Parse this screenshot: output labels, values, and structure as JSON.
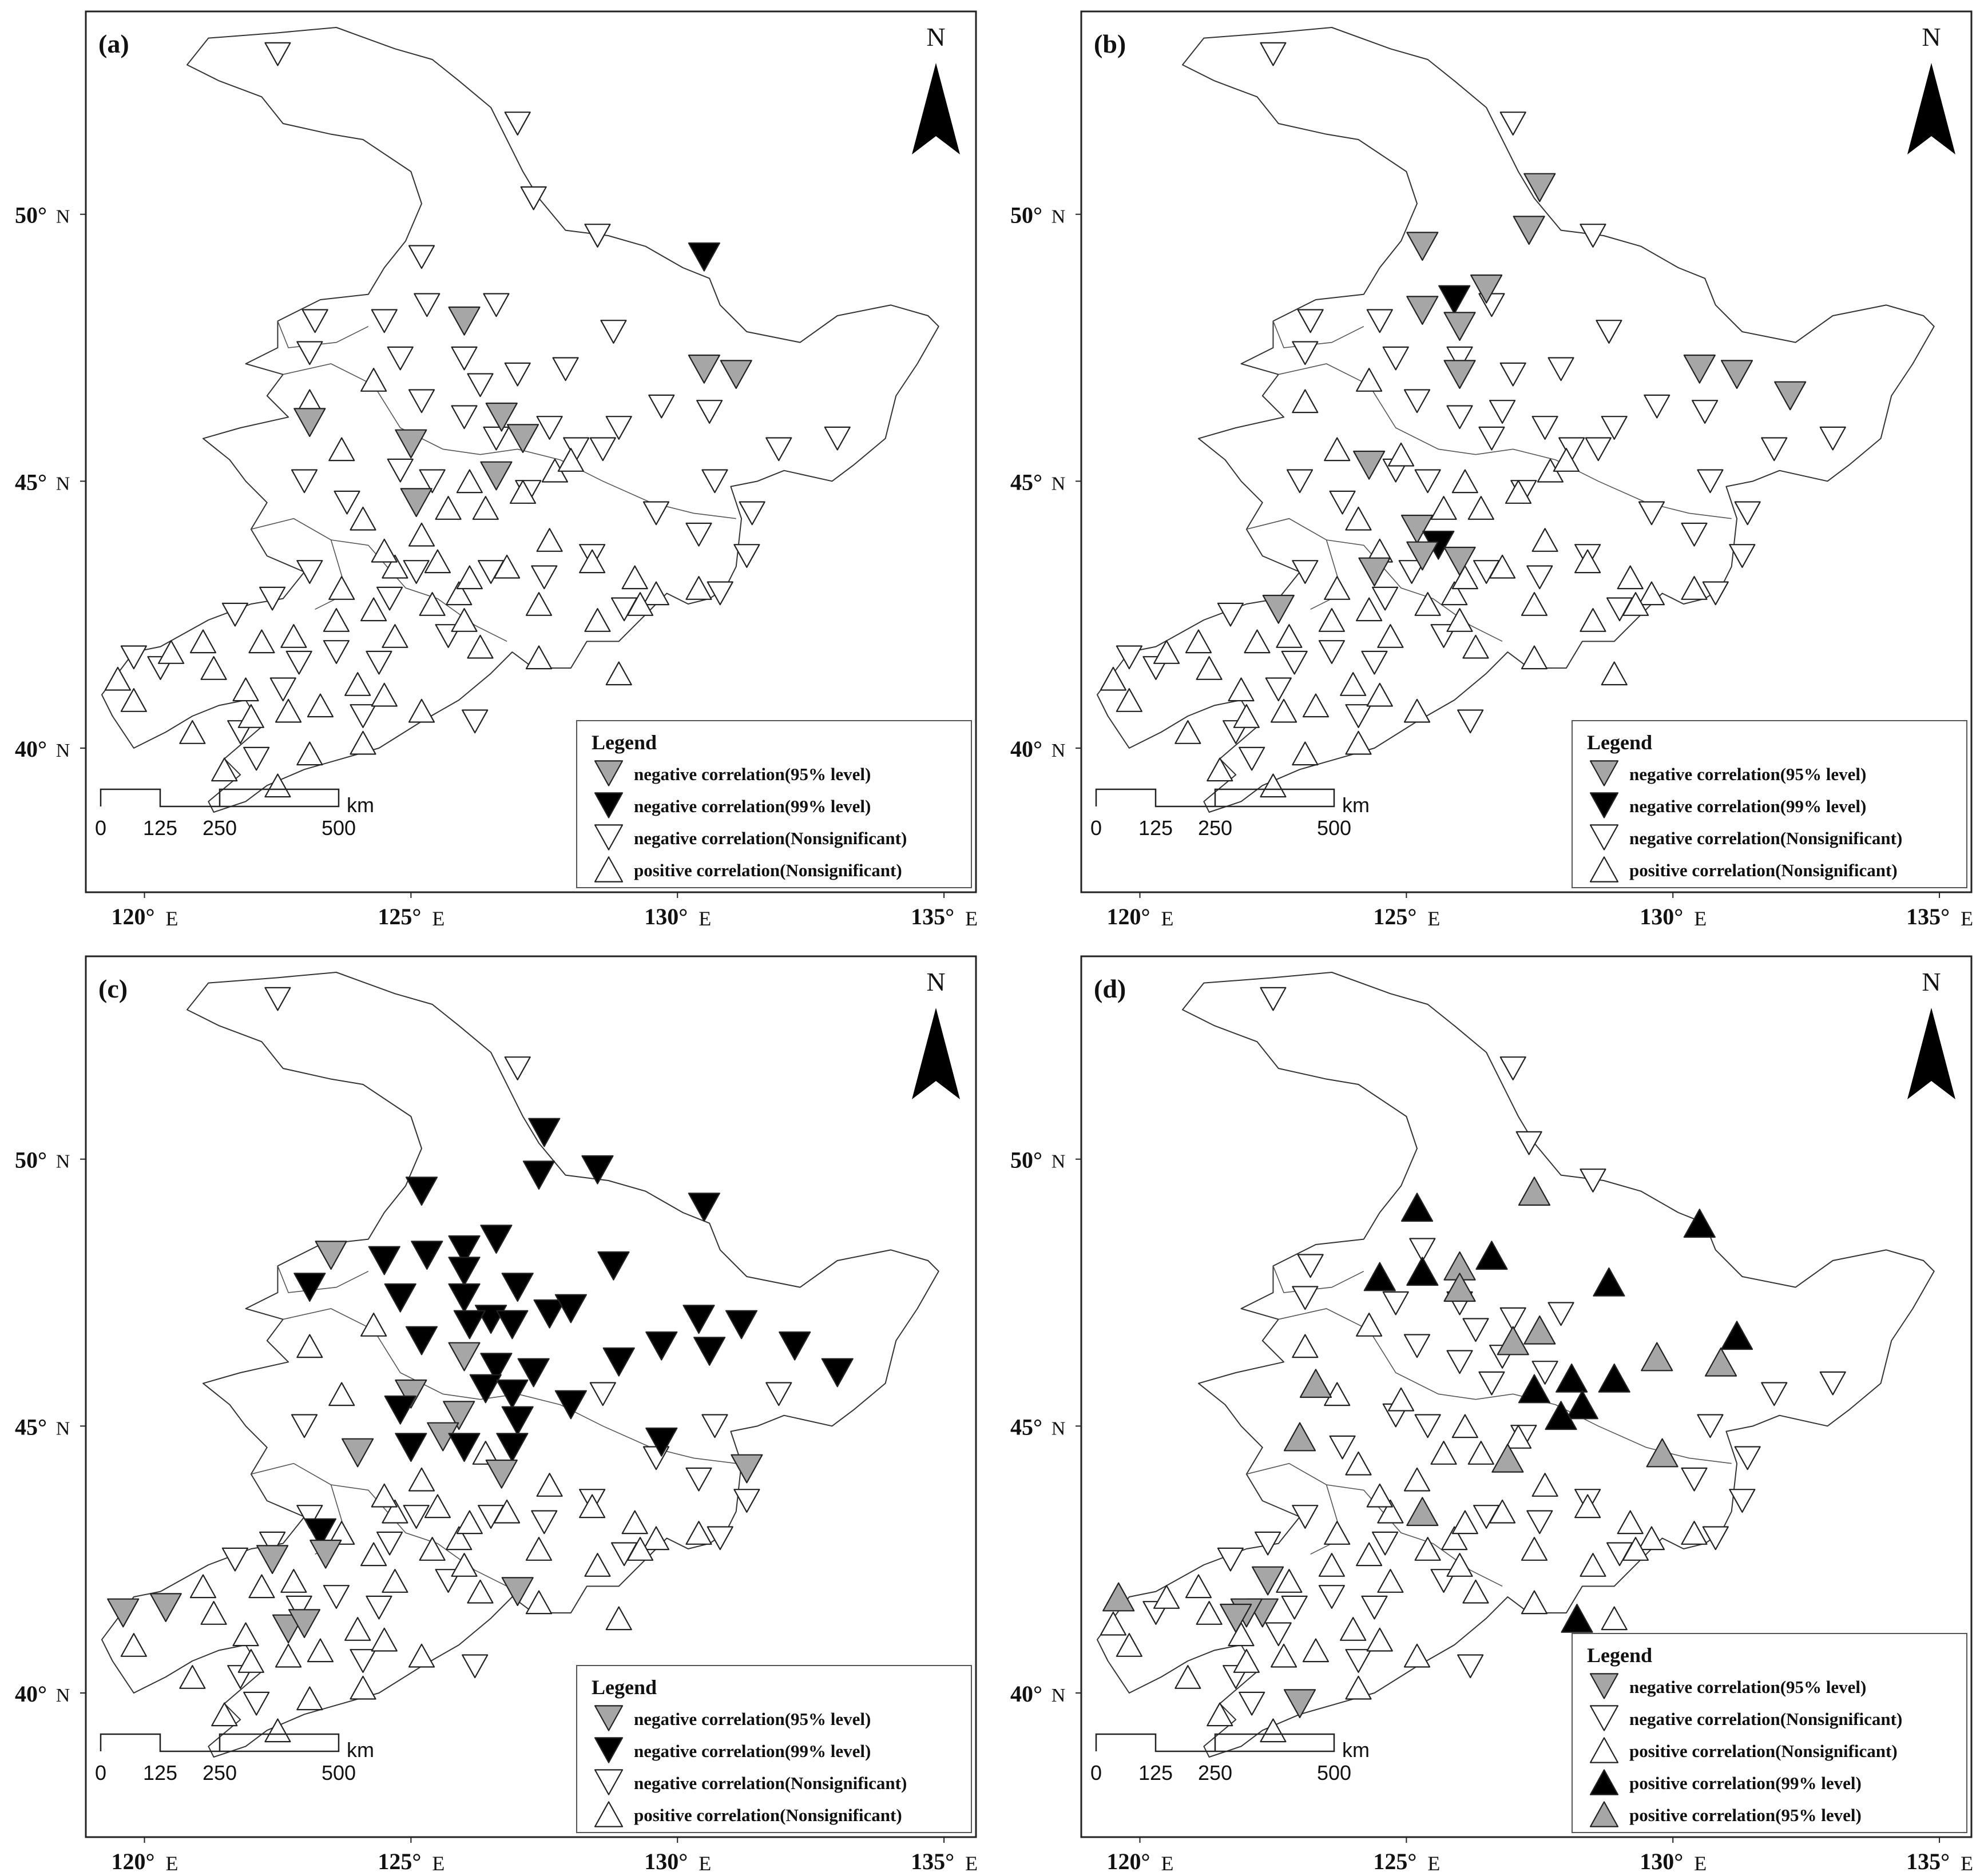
{
  "figure": {
    "north_label": "N",
    "scale_unit": "km",
    "scale_ticks": [
      "0",
      "125",
      "250",
      "500"
    ],
    "lon_ticks": [
      {
        "deg": "120°",
        "hem": "E"
      },
      {
        "deg": "125°",
        "hem": "E"
      },
      {
        "deg": "130°",
        "hem": "E"
      },
      {
        "deg": "135°",
        "hem": "E"
      }
    ],
    "lat_ticks": [
      {
        "deg": "50°",
        "hem": "N"
      },
      {
        "deg": "45°",
        "hem": "N"
      },
      {
        "deg": "40°",
        "hem": "N"
      }
    ],
    "legend_title": "Legend",
    "symbol_colors": {
      "outline": "#222222",
      "white": "#ffffff",
      "gray": "#a6a6a6",
      "black": "#000000"
    }
  },
  "panels": [
    {
      "label": "(a)",
      "legend": [
        {
          "symbol": "down-gray",
          "text": "negative correlation(95% level)"
        },
        {
          "symbol": "down-black",
          "text": "negative correlation(99% level)"
        },
        {
          "symbol": "down-white",
          "text": "negative correlation(Nonsignificant)"
        },
        {
          "symbol": "up-white",
          "text": "positive correlation(Nonsignificant)"
        }
      ],
      "stations": [
        {
          "lon": 130.5,
          "lat": 49.2,
          "cls": "down-black"
        },
        {
          "lon": 126.0,
          "lat": 48.0,
          "cls": "down-gray"
        },
        {
          "lon": 130.5,
          "lat": 47.1,
          "cls": "down-gray"
        },
        {
          "lon": 131.1,
          "lat": 47.0,
          "cls": "down-gray"
        },
        {
          "lon": 126.7,
          "lat": 46.2,
          "cls": "down-gray"
        },
        {
          "lon": 127.1,
          "lat": 45.8,
          "cls": "down-gray"
        },
        {
          "lon": 123.1,
          "lat": 46.1,
          "cls": "down-gray"
        },
        {
          "lon": 125.0,
          "lat": 45.7,
          "cls": "down-gray"
        },
        {
          "lon": 126.6,
          "lat": 45.1,
          "cls": "down-gray"
        },
        {
          "lon": 125.1,
          "lat": 44.6,
          "cls": "down-gray"
        }
      ]
    },
    {
      "label": "(b)",
      "legend": [
        {
          "symbol": "down-gray",
          "text": "negative correlation(95% level)"
        },
        {
          "symbol": "down-black",
          "text": "negative correlation(99% level)"
        },
        {
          "symbol": "down-white",
          "text": "negative correlation(Nonsignificant)"
        },
        {
          "symbol": "up-white",
          "text": "positive correlation(Nonsignificant)"
        }
      ],
      "stations": [
        {
          "lon": 127.5,
          "lat": 50.5,
          "cls": "down-gray"
        },
        {
          "lon": 127.3,
          "lat": 49.7,
          "cls": "down-gray"
        },
        {
          "lon": 125.3,
          "lat": 49.4,
          "cls": "down-gray"
        },
        {
          "lon": 125.9,
          "lat": 48.4,
          "cls": "down-black"
        },
        {
          "lon": 126.5,
          "lat": 48.6,
          "cls": "down-gray"
        },
        {
          "lon": 125.3,
          "lat": 48.2,
          "cls": "down-gray"
        },
        {
          "lon": 126.0,
          "lat": 47.9,
          "cls": "down-gray"
        },
        {
          "lon": 126.0,
          "lat": 47.0,
          "cls": "down-gray"
        },
        {
          "lon": 130.5,
          "lat": 47.1,
          "cls": "down-gray"
        },
        {
          "lon": 131.2,
          "lat": 47.0,
          "cls": "down-gray"
        },
        {
          "lon": 132.2,
          "lat": 46.6,
          "cls": "down-gray"
        },
        {
          "lon": 124.3,
          "lat": 45.3,
          "cls": "down-gray"
        },
        {
          "lon": 125.2,
          "lat": 44.1,
          "cls": "down-gray"
        },
        {
          "lon": 125.6,
          "lat": 43.8,
          "cls": "down-black"
        },
        {
          "lon": 125.3,
          "lat": 43.6,
          "cls": "down-gray"
        },
        {
          "lon": 126.0,
          "lat": 43.5,
          "cls": "down-gray"
        },
        {
          "lon": 124.4,
          "lat": 43.3,
          "cls": "down-gray"
        },
        {
          "lon": 122.6,
          "lat": 42.6,
          "cls": "down-gray"
        }
      ]
    },
    {
      "label": "(c)",
      "legend": [
        {
          "symbol": "down-gray",
          "text": "negative correlation(95% level)"
        },
        {
          "symbol": "down-black",
          "text": "negative correlation(99% level)"
        },
        {
          "symbol": "down-white",
          "text": "negative correlation(Nonsignificant)"
        },
        {
          "symbol": "up-white",
          "text": "positive correlation(Nonsignificant)"
        }
      ],
      "stations": [
        {
          "lon": 127.5,
          "lat": 50.5,
          "cls": "down-black"
        },
        {
          "lon": 127.4,
          "lat": 49.7,
          "cls": "down-black"
        },
        {
          "lon": 128.5,
          "lat": 49.8,
          "cls": "down-black"
        },
        {
          "lon": 130.5,
          "lat": 49.1,
          "cls": "down-black"
        },
        {
          "lon": 125.2,
          "lat": 49.4,
          "cls": "down-black"
        },
        {
          "lon": 123.5,
          "lat": 48.2,
          "cls": "down-gray"
        },
        {
          "lon": 123.1,
          "lat": 47.6,
          "cls": "down-black"
        },
        {
          "lon": 124.5,
          "lat": 48.1,
          "cls": "down-black"
        },
        {
          "lon": 125.3,
          "lat": 48.2,
          "cls": "down-black"
        },
        {
          "lon": 126.0,
          "lat": 48.3,
          "cls": "down-black"
        },
        {
          "lon": 126.6,
          "lat": 48.5,
          "cls": "down-black"
        },
        {
          "lon": 126.0,
          "lat": 47.9,
          "cls": "down-black"
        },
        {
          "lon": 124.8,
          "lat": 47.4,
          "cls": "down-black"
        },
        {
          "lon": 126.0,
          "lat": 47.4,
          "cls": "down-black"
        },
        {
          "lon": 127.0,
          "lat": 47.6,
          "cls": "down-black"
        },
        {
          "lon": 128.8,
          "lat": 48.0,
          "cls": "down-black"
        },
        {
          "lon": 126.5,
          "lat": 47.0,
          "cls": "down-black"
        },
        {
          "lon": 126.1,
          "lat": 46.9,
          "cls": "down-black"
        },
        {
          "lon": 126.9,
          "lat": 46.9,
          "cls": "down-black"
        },
        {
          "lon": 127.6,
          "lat": 47.1,
          "cls": "down-black"
        },
        {
          "lon": 128.0,
          "lat": 47.2,
          "cls": "down-black"
        },
        {
          "lon": 130.4,
          "lat": 47.0,
          "cls": "down-black"
        },
        {
          "lon": 131.2,
          "lat": 46.9,
          "cls": "down-black"
        },
        {
          "lon": 125.2,
          "lat": 46.6,
          "cls": "down-black"
        },
        {
          "lon": 129.7,
          "lat": 46.5,
          "cls": "down-black"
        },
        {
          "lon": 130.6,
          "lat": 46.4,
          "cls": "down-black"
        },
        {
          "lon": 132.2,
          "lat": 46.5,
          "cls": "down-black"
        },
        {
          "lon": 128.9,
          "lat": 46.2,
          "cls": "down-black"
        },
        {
          "lon": 133.0,
          "lat": 46.0,
          "cls": "down-black"
        },
        {
          "lon": 126.0,
          "lat": 46.3,
          "cls": "down-gray"
        },
        {
          "lon": 126.6,
          "lat": 46.1,
          "cls": "down-black"
        },
        {
          "lon": 127.3,
          "lat": 46.0,
          "cls": "down-black"
        },
        {
          "lon": 126.4,
          "lat": 45.7,
          "cls": "down-black"
        },
        {
          "lon": 126.9,
          "lat": 45.6,
          "cls": "down-black"
        },
        {
          "lon": 125.0,
          "lat": 45.6,
          "cls": "down-gray"
        },
        {
          "lon": 124.8,
          "lat": 45.3,
          "cls": "down-black"
        },
        {
          "lon": 125.9,
          "lat": 45.2,
          "cls": "down-gray"
        },
        {
          "lon": 127.0,
          "lat": 45.1,
          "cls": "down-black"
        },
        {
          "lon": 125.6,
          "lat": 44.8,
          "cls": "down-gray"
        },
        {
          "lon": 128.0,
          "lat": 45.4,
          "cls": "down-black"
        },
        {
          "lon": 125.0,
          "lat": 44.6,
          "cls": "down-black"
        },
        {
          "lon": 126.0,
          "lat": 44.6,
          "cls": "down-black"
        },
        {
          "lon": 126.9,
          "lat": 44.6,
          "cls": "down-black"
        },
        {
          "lon": 129.7,
          "lat": 44.7,
          "cls": "down-black"
        },
        {
          "lon": 124.0,
          "lat": 44.5,
          "cls": "down-gray"
        },
        {
          "lon": 126.7,
          "lat": 44.1,
          "cls": "down-gray"
        },
        {
          "lon": 131.3,
          "lat": 44.2,
          "cls": "down-gray"
        },
        {
          "lon": 123.3,
          "lat": 43.0,
          "cls": "down-black"
        },
        {
          "lon": 123.4,
          "lat": 42.6,
          "cls": "down-gray"
        },
        {
          "lon": 122.4,
          "lat": 42.5,
          "cls": "down-gray"
        },
        {
          "lon": 127.0,
          "lat": 41.9,
          "cls": "down-gray"
        },
        {
          "lon": 119.6,
          "lat": 41.5,
          "cls": "down-gray"
        },
        {
          "lon": 120.4,
          "lat": 41.6,
          "cls": "down-gray"
        },
        {
          "lon": 122.7,
          "lat": 41.2,
          "cls": "down-gray"
        },
        {
          "lon": 123.0,
          "lat": 41.3,
          "cls": "down-gray"
        }
      ]
    },
    {
      "label": "(d)",
      "legend": [
        {
          "symbol": "down-gray",
          "text": "negative correlation(95% level)"
        },
        {
          "symbol": "down-white",
          "text": "negative correlation(Nonsignificant)"
        },
        {
          "symbol": "up-white",
          "text": "positive correlation(Nonsignificant)"
        },
        {
          "symbol": "up-black",
          "text": "positive correlation(99% level)"
        },
        {
          "symbol": "up-gray",
          "text": "positive correlation(95% level)"
        }
      ],
      "stations": [
        {
          "lon": 125.2,
          "lat": 49.1,
          "cls": "up-black"
        },
        {
          "lon": 130.5,
          "lat": 48.8,
          "cls": "up-black"
        },
        {
          "lon": 127.4,
          "lat": 49.4,
          "cls": "up-gray"
        },
        {
          "lon": 124.5,
          "lat": 47.8,
          "cls": "up-black"
        },
        {
          "lon": 125.3,
          "lat": 47.9,
          "cls": "up-black"
        },
        {
          "lon": 126.6,
          "lat": 48.2,
          "cls": "up-black"
        },
        {
          "lon": 126.0,
          "lat": 48.0,
          "cls": "up-gray"
        },
        {
          "lon": 126.0,
          "lat": 47.6,
          "cls": "up-gray"
        },
        {
          "lon": 128.8,
          "lat": 47.7,
          "cls": "up-black"
        },
        {
          "lon": 131.2,
          "lat": 46.7,
          "cls": "up-black"
        },
        {
          "lon": 127.5,
          "lat": 46.8,
          "cls": "up-gray"
        },
        {
          "lon": 127.0,
          "lat": 46.6,
          "cls": "up-gray"
        },
        {
          "lon": 129.7,
          "lat": 46.3,
          "cls": "up-gray"
        },
        {
          "lon": 130.9,
          "lat": 46.2,
          "cls": "up-gray"
        },
        {
          "lon": 128.1,
          "lat": 45.9,
          "cls": "up-black"
        },
        {
          "lon": 128.9,
          "lat": 45.9,
          "cls": "up-black"
        },
        {
          "lon": 127.4,
          "lat": 45.7,
          "cls": "up-black"
        },
        {
          "lon": 128.3,
          "lat": 45.4,
          "cls": "up-black"
        },
        {
          "lon": 127.9,
          "lat": 45.2,
          "cls": "up-black"
        },
        {
          "lon": 123.3,
          "lat": 45.8,
          "cls": "up-gray"
        },
        {
          "lon": 123.0,
          "lat": 44.8,
          "cls": "up-gray"
        },
        {
          "lon": 126.9,
          "lat": 44.4,
          "cls": "up-gray"
        },
        {
          "lon": 129.8,
          "lat": 44.5,
          "cls": "up-gray"
        },
        {
          "lon": 125.3,
          "lat": 43.4,
          "cls": "up-gray"
        },
        {
          "lon": 128.2,
          "lat": 41.4,
          "cls": "up-black"
        },
        {
          "lon": 119.6,
          "lat": 41.8,
          "cls": "up-gray"
        },
        {
          "lon": 122.4,
          "lat": 42.1,
          "cls": "down-gray"
        },
        {
          "lon": 122.3,
          "lat": 41.5,
          "cls": "down-gray"
        },
        {
          "lon": 122.0,
          "lat": 41.5,
          "cls": "down-gray"
        },
        {
          "lon": 121.8,
          "lat": 41.4,
          "cls": "down-gray"
        },
        {
          "lon": 123.0,
          "lat": 39.8,
          "cls": "down-gray"
        }
      ]
    }
  ]
}
